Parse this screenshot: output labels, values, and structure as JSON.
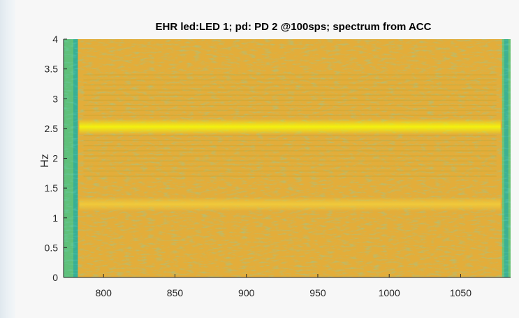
{
  "chart_data": {
    "type": "heatmap",
    "title": "EHR led:LED 1; pd: PD 2 @100sps; spectrum from ACC",
    "xlabel": "",
    "ylabel": "Hz",
    "xlim": [
      772,
      1085
    ],
    "ylim": [
      0,
      4
    ],
    "x_ticks": [
      800,
      850,
      900,
      950,
      1000,
      1050
    ],
    "y_ticks": [
      0,
      0.5,
      1,
      1.5,
      2,
      2.5,
      3,
      3.5,
      4
    ],
    "x_tick_labels": [
      "800",
      "850",
      "900",
      "950",
      "1000",
      "1050"
    ],
    "y_tick_labels": [
      "0",
      "0.5",
      "1",
      "1.5",
      "2",
      "2.5",
      "3",
      "3.5",
      "4"
    ],
    "colormap": "parula",
    "colors": {
      "low": "#2ab0a0",
      "mid": "#d6b12f",
      "high": "#f4f20e",
      "background": "#e3ad3a"
    },
    "signal_start_x": 782,
    "signal_end_x": 1079,
    "bands": [
      {
        "center_hz": 2.53,
        "width_hz": 0.12,
        "level": 1.0
      },
      {
        "center_hz": 1.23,
        "width_hz": 0.09,
        "level": 0.72
      }
    ],
    "grid": false
  }
}
